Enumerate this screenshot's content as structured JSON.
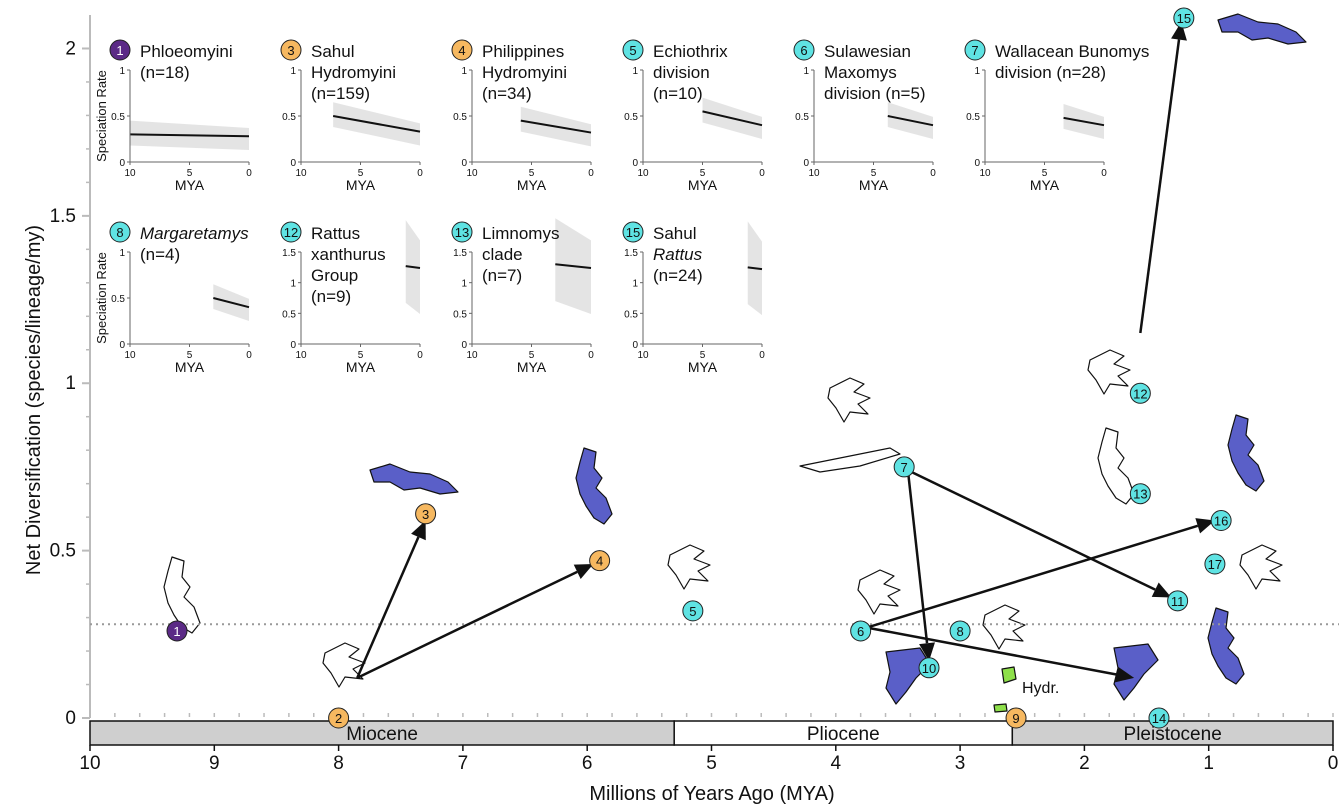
{
  "chart_data": {
    "type": "scatter",
    "xlabel": "Millions of Years Ago (MYA)",
    "ylabel": "Net Diversification (species/lineage/my)",
    "xlim": [
      10,
      0
    ],
    "ylim": [
      0,
      2.1
    ],
    "x_reversed": true,
    "x_ticks": [
      "10",
      "9",
      "8",
      "7",
      "6",
      "5",
      "4",
      "3",
      "2",
      "1",
      "0"
    ],
    "y_ticks": [
      "0",
      "0.5",
      "1",
      "1.5",
      "2"
    ],
    "reference_line": {
      "y": 0.28,
      "style": "dotted"
    },
    "epochs": [
      {
        "label": "Miocene",
        "start": 10,
        "end": 5.3,
        "fill": "#cfcfcf"
      },
      {
        "label": "Pliocene",
        "start": 5.3,
        "end": 2.58,
        "fill": "#ffffff"
      },
      {
        "label": "Pleistocene",
        "start": 2.58,
        "end": 0,
        "fill": "#cfcfcf"
      }
    ],
    "nodes": [
      {
        "id": "1",
        "x": 9.3,
        "y": 0.26,
        "group": "Phloeomyini"
      },
      {
        "id": "2",
        "x": 8.0,
        "y": 0.0,
        "group": "Hydromyini"
      },
      {
        "id": "3",
        "x": 7.3,
        "y": 0.61,
        "group": "Hydromyini"
      },
      {
        "id": "4",
        "x": 5.9,
        "y": 0.47,
        "group": "Hydromyini"
      },
      {
        "id": "5",
        "x": 5.15,
        "y": 0.32,
        "group": "Rattini"
      },
      {
        "id": "6",
        "x": 3.8,
        "y": 0.26,
        "group": "Rattini"
      },
      {
        "id": "7",
        "x": 3.45,
        "y": 0.75,
        "group": "Rattini"
      },
      {
        "id": "8",
        "x": 3.0,
        "y": 0.26,
        "group": "Rattini"
      },
      {
        "id": "9",
        "x": 2.55,
        "y": 0.0,
        "group": "Hydromyini"
      },
      {
        "id": "10",
        "x": 3.25,
        "y": 0.15,
        "group": "Rattini"
      },
      {
        "id": "11",
        "x": 1.25,
        "y": 0.35,
        "group": "Rattini"
      },
      {
        "id": "12",
        "x": 1.55,
        "y": 0.97,
        "group": "Rattini"
      },
      {
        "id": "13",
        "x": 1.55,
        "y": 0.67,
        "group": "Rattini"
      },
      {
        "id": "14",
        "x": 1.4,
        "y": 0.0,
        "group": "Rattini"
      },
      {
        "id": "15",
        "x": 1.2,
        "y": 2.1,
        "group": "Rattini"
      },
      {
        "id": "16",
        "x": 0.9,
        "y": 0.59,
        "group": "Rattini"
      },
      {
        "id": "17",
        "x": 0.95,
        "y": 0.46,
        "group": "Rattini"
      }
    ],
    "node_colors": {
      "Phloeomyini": "#5b2a86",
      "Hydromyini": "#f6b860",
      "Rattini": "#5fe3e3"
    },
    "arrows": [
      {
        "from": [
          7.85,
          0.12
        ],
        "to": [
          7.3,
          0.59
        ]
      },
      {
        "from": [
          7.85,
          0.12
        ],
        "to": [
          5.95,
          0.46
        ]
      },
      {
        "from": [
          3.75,
          0.27
        ],
        "to": [
          0.95,
          0.59
        ]
      },
      {
        "from": [
          3.75,
          0.27
        ],
        "to": [
          1.6,
          0.12
        ]
      },
      {
        "from": [
          3.42,
          0.74
        ],
        "to": [
          3.25,
          0.17
        ]
      },
      {
        "from": [
          3.42,
          0.74
        ],
        "to": [
          1.3,
          0.36
        ]
      },
      {
        "from": [
          1.55,
          1.15
        ],
        "to": [
          1.22,
          2.08
        ]
      }
    ],
    "map_fill_colors": {
      "filled": "#5a5fc8",
      "outline": "#ffffff",
      "highlight": "#8ee04a"
    },
    "hydr_label": "Hydr.",
    "insets": [
      {
        "num": "1",
        "lines": [
          "Phloeomyini",
          "(n=18)"
        ],
        "color": "#5b2a86",
        "ylim": [
          0,
          1
        ],
        "yticks": [
          "0",
          "0.5",
          "1"
        ],
        "start": 10,
        "rate_start": 0.3,
        "rate_end": 0.28
      },
      {
        "num": "3",
        "lines": [
          "Sahul",
          "Hydromyini",
          "(n=159)"
        ],
        "color": "#f6b860",
        "ylim": [
          0,
          1
        ],
        "yticks": [
          "0",
          "0.5",
          "1"
        ],
        "start": 7.3,
        "rate_start": 0.5,
        "rate_end": 0.33
      },
      {
        "num": "4",
        "lines": [
          "Philippines",
          "Hydromyini",
          "(n=34)"
        ],
        "color": "#f6b860",
        "ylim": [
          0,
          1
        ],
        "yticks": [
          "0",
          "0.5",
          "1"
        ],
        "start": 5.9,
        "rate_start": 0.45,
        "rate_end": 0.32
      },
      {
        "num": "5",
        "lines": [
          "Echiothrix",
          "division",
          "(n=10)"
        ],
        "color": "#5fe3e3",
        "ylim": [
          0,
          1
        ],
        "yticks": [
          "0",
          "0.5",
          "1"
        ],
        "start": 5.0,
        "rate_start": 0.55,
        "rate_end": 0.4
      },
      {
        "num": "6",
        "lines": [
          "Sulawesian",
          "Maxomys",
          "division (n=5)"
        ],
        "color": "#5fe3e3",
        "ylim": [
          0,
          1
        ],
        "yticks": [
          "0",
          "0.5",
          "1"
        ],
        "start": 3.8,
        "rate_start": 0.5,
        "rate_end": 0.4
      },
      {
        "num": "7",
        "lines": [
          "Wallacean Bunomys",
          "division (n=28)"
        ],
        "color": "#5fe3e3",
        "ylim": [
          0,
          1
        ],
        "yticks": [
          "0",
          "0.5",
          "1"
        ],
        "start": 3.4,
        "rate_start": 0.48,
        "rate_end": 0.4
      },
      {
        "num": "8",
        "lines": [
          "Margaretamys",
          "(n=4)"
        ],
        "italic": [
          true,
          false
        ],
        "color": "#5fe3e3",
        "ylim": [
          0,
          1
        ],
        "yticks": [
          "0",
          "0.5",
          "1"
        ],
        "start": 3.0,
        "rate_start": 0.5,
        "rate_end": 0.4
      },
      {
        "num": "12",
        "lines": [
          "Rattus",
          "xanthurus",
          "Group",
          "(n=9)"
        ],
        "color": "#5fe3e3",
        "ylim": [
          0,
          1.5
        ],
        "yticks": [
          "0",
          "0.5",
          "1",
          "1.5"
        ],
        "start": 1.2,
        "rate_start": 1.27,
        "rate_end": 1.24
      },
      {
        "num": "13",
        "lines": [
          "Limnomys",
          "clade",
          "(n=7)"
        ],
        "color": "#5fe3e3",
        "ylim": [
          0,
          1.5
        ],
        "yticks": [
          "0",
          "0.5",
          "1",
          "1.5"
        ],
        "start": 3.0,
        "rate_start": 1.3,
        "rate_end": 1.24
      },
      {
        "num": "15",
        "lines": [
          "Sahul",
          "Rattus",
          "(n=24)"
        ],
        "italic": [
          false,
          true,
          false
        ],
        "color": "#5fe3e3",
        "ylim": [
          0,
          1.5
        ],
        "yticks": [
          "0",
          "0.5",
          "1",
          "1.5"
        ],
        "start": 1.2,
        "rate_start": 1.25,
        "rate_end": 1.22
      }
    ],
    "inset_ylabel": "Speciation Rate",
    "inset_xlabel": "MYA",
    "inset_xticks": [
      "10",
      "5",
      "0"
    ]
  }
}
